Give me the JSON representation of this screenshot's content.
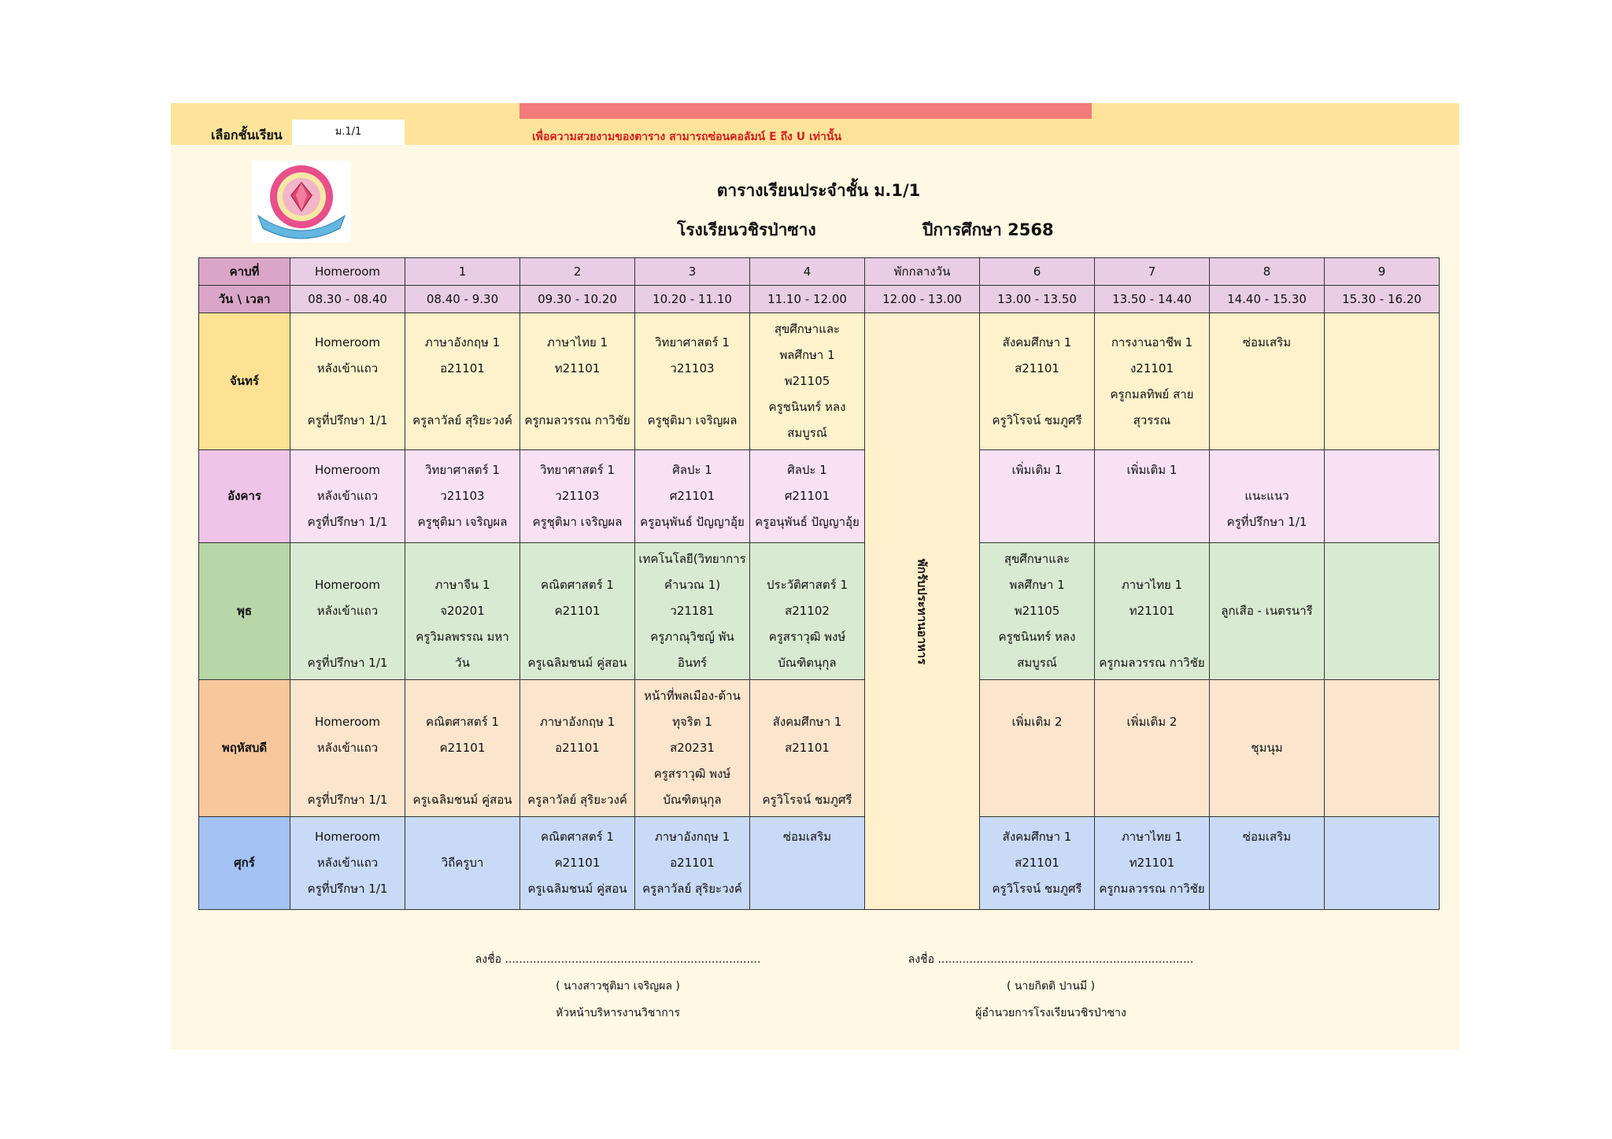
{
  "header": {
    "select_label": "เลือกชั้นเรียน",
    "select_value": "ม.1/1",
    "note": "เพื่อความสวยงามของตาราง สามารถซ่อนคอลัมน์ E ถึง U เท่านั้น"
  },
  "title": "ตารางเรียนประจำชั้น ม.1/1",
  "school": "โรงเรียนวชิรป่าซาง",
  "year": "ปีการศึกษา 2568",
  "table": {
    "period_label": "คาบที่",
    "time_label": "วัน \\ เวลา",
    "periods": [
      "Homeroom",
      "1",
      "2",
      "3",
      "4",
      "พักกลางวัน",
      "6",
      "7",
      "8",
      "9"
    ],
    "times": [
      "08.30 - 08.40",
      "08.40 - 9.30",
      "09.30 - 10.20",
      "10.20 - 11.10",
      "11.10 - 12.00",
      "12.00 - 13.00",
      "13.00 - 13.50",
      "13.50 - 14.40",
      "14.40 - 15.30",
      "15.30 - 16.20"
    ],
    "lunch": "พักรับประทานอาหาร",
    "days": [
      {
        "name": "จันทร์",
        "color": "mon",
        "cells": [
          [
            "Homeroom",
            "หลังเข้าแถว",
            "",
            "ครูที่ปรึกษา 1/1"
          ],
          [
            "ภาษาอังกฤษ 1",
            "อ21101",
            "",
            "ครูลาวัลย์ สุริยะวงค์"
          ],
          [
            "ภาษาไทย 1",
            "ท21101",
            "",
            "ครูกมลวรรณ กาวิชัย"
          ],
          [
            "วิทยาศาสตร์ 1",
            "ว21103",
            "",
            "ครูชุติมา เจริญผล"
          ],
          [
            "สุขศึกษาและ",
            "พลศึกษา 1",
            "พ21105",
            "ครูชนินทร์ หลง",
            "สมบูรณ์"
          ],
          [
            "สังคมศึกษา 1",
            "ส21101",
            "",
            "ครูวิโรจน์ ชมภูศรี"
          ],
          [
            "การงานอาชีพ 1",
            "ง21101",
            "ครูกมลทิพย์ สาย",
            "สุวรรณ"
          ],
          [
            "ซ่อมเสริม",
            "",
            "",
            ""
          ],
          []
        ]
      },
      {
        "name": "อังคาร",
        "color": "tue",
        "cells": [
          [
            "Homeroom",
            "หลังเข้าแถว",
            "ครูที่ปรึกษา 1/1"
          ],
          [
            "วิทยาศาสตร์ 1",
            "ว21103",
            "ครูชุติมา เจริญผล"
          ],
          [
            "วิทยาศาสตร์ 1",
            "ว21103",
            "ครูชุติมา เจริญผล"
          ],
          [
            "ศิลปะ 1",
            "ศ21101",
            "ครูอนุพันธ์ ปัญญาอุ้ย"
          ],
          [
            "ศิลปะ 1",
            "ศ21101",
            "ครูอนุพันธ์ ปัญญาอุ้ย"
          ],
          [
            "เพิ่มเติม 1",
            "",
            ""
          ],
          [
            "เพิ่มเติม 1",
            "",
            ""
          ],
          [
            "",
            "แนะแนว",
            "ครูที่ปรึกษา 1/1"
          ],
          []
        ]
      },
      {
        "name": "พุธ",
        "color": "wed",
        "cells": [
          [
            "",
            "Homeroom",
            "หลังเข้าแถว",
            "",
            "ครูที่ปรึกษา 1/1"
          ],
          [
            "",
            "ภาษาจีน 1",
            "จ20201",
            "ครูวิมลพรรณ มหา",
            "วัน"
          ],
          [
            "",
            "คณิตศาสตร์ 1",
            "ค21101",
            "",
            "ครูเฉลิมชนม์ คู่สอน"
          ],
          [
            "เทคโนโลยี(วิทยาการ",
            "คำนวณ 1)",
            "ว21181",
            "ครูภาณุวิชญ์ พัน",
            "อินทร์"
          ],
          [
            "",
            "ประวัติศาสตร์ 1",
            "ส21102",
            "ครูสราวุฒิ พงษ์",
            "บัณฑิตนุกุล"
          ],
          [
            "สุขศึกษาและ",
            "พลศึกษา 1",
            "พ21105",
            "ครูชนินทร์ หลง",
            "สมบูรณ์"
          ],
          [
            "",
            "ภาษาไทย 1",
            "ท21101",
            "",
            "ครูกมลวรรณ กาวิชัย"
          ],
          [
            "",
            "",
            "ลูกเสือ - เนตรนารี",
            "",
            ""
          ],
          []
        ]
      },
      {
        "name": "พฤหัสบดี",
        "color": "thu",
        "cells": [
          [
            "",
            "Homeroom",
            "หลังเข้าแถว",
            "",
            "ครูที่ปรึกษา 1/1"
          ],
          [
            "",
            "คณิตศาสตร์ 1",
            "ค21101",
            "",
            "ครูเฉลิมชนม์ คู่สอน"
          ],
          [
            "",
            "ภาษาอังกฤษ 1",
            "อ21101",
            "",
            "ครูลาวัลย์ สุริยะวงค์"
          ],
          [
            "หน้าที่พลเมือง-ต้าน",
            "ทุจริต 1",
            "ส20231",
            "ครูสราวุฒิ พงษ์",
            "บัณฑิตนุกุล"
          ],
          [
            "",
            "สังคมศึกษา 1",
            "ส21101",
            "",
            "ครูวิโรจน์ ชมภูศรี"
          ],
          [
            "",
            "เพิ่มเติม 2",
            "",
            "",
            ""
          ],
          [
            "",
            "เพิ่มเติม 2",
            "",
            "",
            ""
          ],
          [
            "",
            "",
            "ชุมนุม",
            "",
            ""
          ],
          []
        ]
      },
      {
        "name": "ศุกร์",
        "color": "fri",
        "cells": [
          [
            "Homeroom",
            "หลังเข้าแถว",
            "ครูที่ปรึกษา 1/1"
          ],
          [
            "",
            "วิถีครูบา",
            ""
          ],
          [
            "คณิตศาสตร์ 1",
            "ค21101",
            "ครูเฉลิมชนม์ คู่สอน"
          ],
          [
            "ภาษาอังกฤษ 1",
            "อ21101",
            "ครูลาวัลย์ สุริยะวงค์"
          ],
          [
            "ซ่อมเสริม",
            "",
            ""
          ],
          [
            "สังคมศึกษา 1",
            "ส21101",
            "ครูวิโรจน์ ชมภูศรี"
          ],
          [
            "ภาษาไทย 1",
            "ท21101",
            "ครูกมลวรรณ กาวิชัย"
          ],
          [
            "ซ่อมเสริม",
            "",
            ""
          ],
          []
        ]
      }
    ]
  },
  "signatures": [
    {
      "line": "ลงชื่อ .........................................................................",
      "name": "( นางสาวชุติมา  เจริญผล )",
      "position": "หัวหน้าบริหารงานวิชาการ"
    },
    {
      "line": "ลงชื่อ .........................................................................",
      "name": "( นายกิตติ   ปานมี )",
      "position": "ผู้อำนวยการโรงเรียนวชิรป่าซาง"
    }
  ]
}
